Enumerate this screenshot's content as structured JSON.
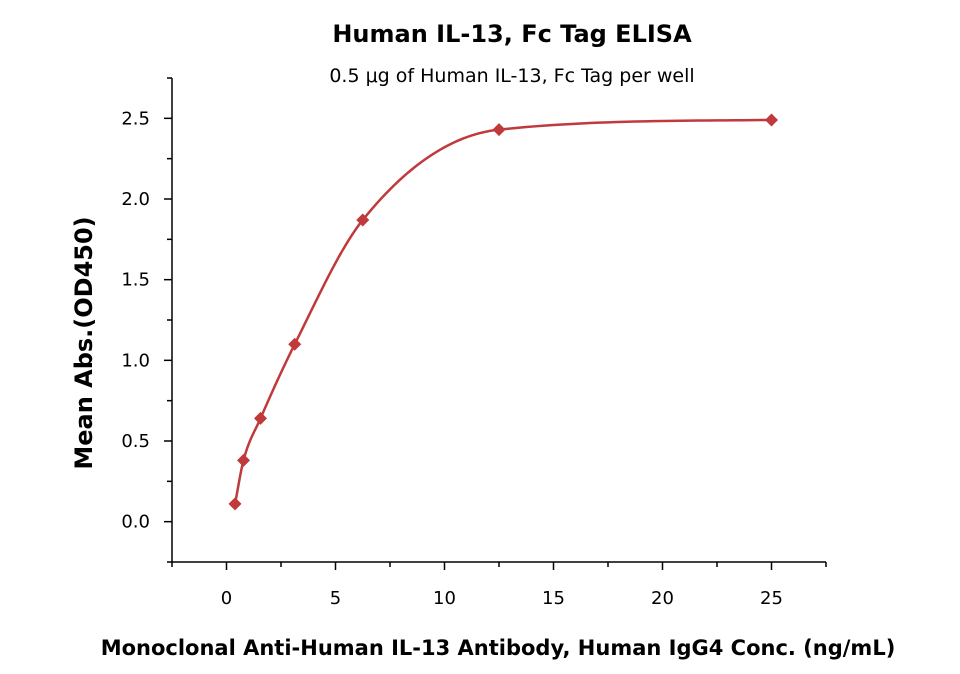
{
  "chart_data": {
    "type": "scatter",
    "title": "Human IL-13, Fc Tag ELISA",
    "subtitle": "0.5 μg of Human IL-13, Fc Tag per well",
    "xlabel": "Monoclonal Anti-Human IL-13 Antibody, Human IgG4 Conc. (ng/mL)",
    "ylabel": "Mean Abs.(OD450)",
    "xlim": [
      -2.5,
      27.5
    ],
    "ylim": [
      -0.25,
      2.75
    ],
    "xticks": [
      0,
      5,
      10,
      15,
      20,
      25
    ],
    "xtick_labels": [
      "0",
      "5",
      "10",
      "15",
      "20",
      "25"
    ],
    "yticks": [
      0.0,
      0.5,
      1.0,
      1.5,
      2.0,
      2.5
    ],
    "ytick_labels": [
      "0.0",
      "0.5",
      "1.0",
      "1.5",
      "2.0",
      "2.5"
    ],
    "grid": false,
    "legend": "none",
    "series": [
      {
        "marker": "diamond",
        "color": "#c0393b",
        "x": [
          0.39,
          0.78,
          1.56,
          3.13,
          6.25,
          12.5,
          25
        ],
        "y": [
          0.11,
          0.38,
          0.64,
          1.1,
          1.87,
          2.43,
          2.49
        ],
        "fit": "logistic"
      }
    ]
  }
}
